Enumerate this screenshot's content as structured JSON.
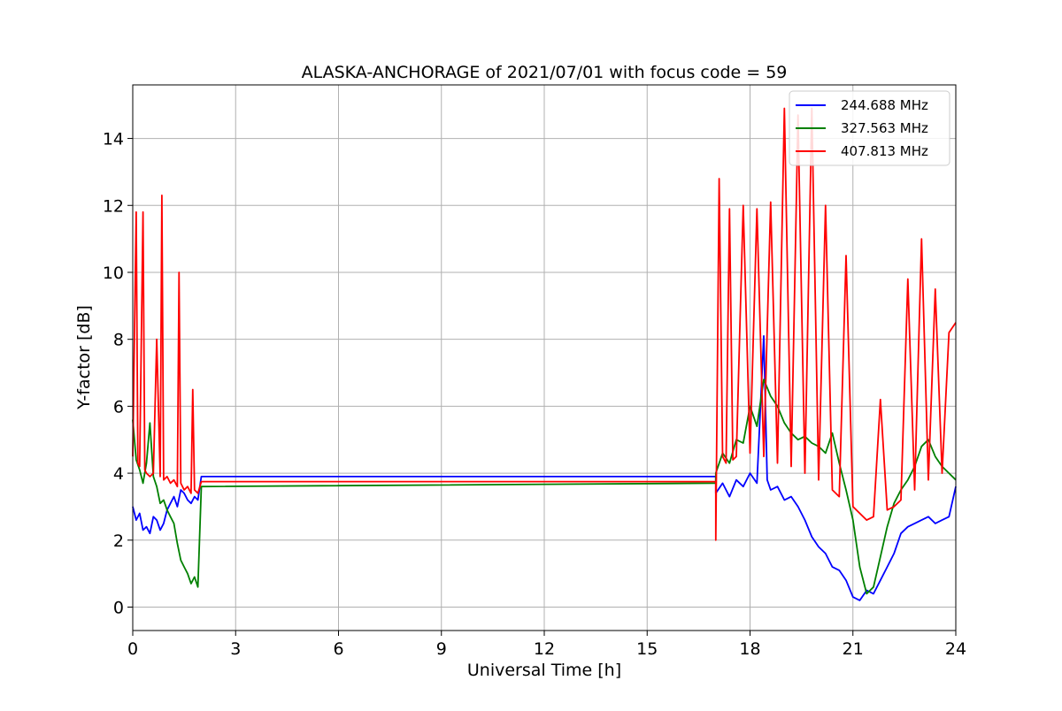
{
  "chart_data": {
    "type": "line",
    "title": "ALASKA-ANCHORAGE of 2021/07/01 with focus code = 59",
    "xlabel": "Universal Time [h]",
    "ylabel": "Y-factor [dB]",
    "xlim": [
      0,
      24
    ],
    "ylim": [
      -0.7,
      15.6
    ],
    "xticks": [
      0,
      3,
      6,
      9,
      12,
      15,
      18,
      21,
      24
    ],
    "yticks": [
      0,
      2,
      4,
      6,
      8,
      10,
      12,
      14
    ],
    "grid": true,
    "legend_position": "top-right",
    "series": [
      {
        "name": "244.688 MHz",
        "color": "#0000ff",
        "x": [
          0,
          0.1,
          0.2,
          0.3,
          0.4,
          0.5,
          0.6,
          0.7,
          0.8,
          0.9,
          1.0,
          1.1,
          1.2,
          1.3,
          1.4,
          1.5,
          1.6,
          1.7,
          1.8,
          1.9,
          2.0,
          17.0,
          17.0,
          17.2,
          17.4,
          17.6,
          17.8,
          18.0,
          18.2,
          18.4,
          18.5,
          18.6,
          18.8,
          19.0,
          19.2,
          19.4,
          19.6,
          19.8,
          20.0,
          20.2,
          20.4,
          20.6,
          20.8,
          21.0,
          21.2,
          21.4,
          21.6,
          21.8,
          22.0,
          22.2,
          22.4,
          22.6,
          22.8,
          23.0,
          23.2,
          23.4,
          23.6,
          23.8,
          24.0
        ],
        "values": [
          3.0,
          2.6,
          2.8,
          2.3,
          2.4,
          2.2,
          2.7,
          2.6,
          2.3,
          2.5,
          2.9,
          3.1,
          3.3,
          3.0,
          3.5,
          3.4,
          3.2,
          3.1,
          3.3,
          3.2,
          3.9,
          3.9,
          3.4,
          3.7,
          3.3,
          3.8,
          3.6,
          4.0,
          3.7,
          8.1,
          3.8,
          3.5,
          3.6,
          3.2,
          3.3,
          3.0,
          2.6,
          2.1,
          1.8,
          1.6,
          1.2,
          1.1,
          0.8,
          0.3,
          0.2,
          0.5,
          0.4,
          0.8,
          1.2,
          1.6,
          2.2,
          2.4,
          2.5,
          2.6,
          2.7,
          2.5,
          2.6,
          2.7,
          3.6
        ]
      },
      {
        "name": "327.563 MHz",
        "color": "#008000",
        "x": [
          0,
          0.1,
          0.2,
          0.3,
          0.4,
          0.5,
          0.6,
          0.7,
          0.8,
          0.9,
          1.0,
          1.1,
          1.2,
          1.3,
          1.4,
          1.5,
          1.6,
          1.7,
          1.8,
          1.9,
          2.0,
          17.0,
          17.0,
          17.2,
          17.4,
          17.6,
          17.8,
          18.0,
          18.2,
          18.4,
          18.6,
          18.8,
          19.0,
          19.2,
          19.4,
          19.6,
          19.8,
          20.0,
          20.2,
          20.4,
          20.6,
          20.8,
          21.0,
          21.2,
          21.4,
          21.6,
          21.8,
          22.0,
          22.2,
          22.4,
          22.6,
          22.8,
          23.0,
          23.2,
          23.4,
          23.6,
          23.8,
          24.0
        ],
        "values": [
          5.6,
          4.4,
          4.1,
          3.7,
          4.3,
          5.5,
          3.9,
          3.6,
          3.1,
          3.2,
          2.9,
          2.7,
          2.5,
          1.9,
          1.4,
          1.2,
          1.0,
          0.7,
          0.9,
          0.6,
          3.6,
          3.7,
          4.0,
          4.6,
          4.3,
          5.0,
          4.9,
          6.0,
          5.4,
          6.8,
          6.3,
          6.0,
          5.5,
          5.2,
          5.0,
          5.1,
          4.9,
          4.8,
          4.6,
          5.2,
          4.3,
          3.5,
          2.6,
          1.2,
          0.4,
          0.6,
          1.5,
          2.4,
          3.1,
          3.5,
          3.8,
          4.2,
          4.8,
          5.0,
          4.5,
          4.2,
          4.0,
          3.8
        ]
      },
      {
        "name": "407.813 MHz",
        "color": "#ff0000",
        "x": [
          0,
          0.1,
          0.15,
          0.2,
          0.3,
          0.35,
          0.4,
          0.5,
          0.6,
          0.7,
          0.8,
          0.85,
          0.9,
          1.0,
          1.1,
          1.2,
          1.3,
          1.35,
          1.4,
          1.5,
          1.6,
          1.7,
          1.75,
          1.8,
          1.9,
          2.0,
          17.0,
          17.0,
          17.1,
          17.2,
          17.3,
          17.4,
          17.5,
          17.6,
          17.8,
          18.0,
          18.2,
          18.4,
          18.6,
          18.8,
          19.0,
          19.2,
          19.4,
          19.6,
          19.8,
          20.0,
          20.2,
          20.4,
          20.6,
          20.8,
          21.0,
          21.2,
          21.4,
          21.6,
          21.8,
          22.0,
          22.2,
          22.4,
          22.6,
          22.8,
          23.0,
          23.2,
          23.4,
          23.6,
          23.8,
          24.0
        ],
        "values": [
          4.5,
          11.8,
          4.3,
          4.2,
          11.8,
          4.1,
          4.0,
          3.9,
          4.0,
          8.0,
          3.9,
          12.3,
          3.8,
          3.9,
          3.7,
          3.8,
          3.6,
          10.0,
          3.7,
          3.5,
          3.6,
          3.4,
          6.5,
          3.5,
          3.4,
          3.75,
          3.75,
          2.0,
          12.8,
          4.5,
          4.3,
          11.9,
          4.4,
          4.5,
          12.0,
          4.6,
          11.9,
          4.5,
          12.1,
          4.3,
          14.9,
          4.2,
          14.7,
          4.0,
          14.9,
          3.8,
          12.0,
          3.5,
          3.3,
          10.5,
          3.0,
          2.8,
          2.6,
          2.7,
          6.2,
          2.9,
          3.0,
          3.2,
          9.8,
          3.5,
          11.0,
          3.8,
          9.5,
          4.0,
          8.2,
          8.5
        ]
      }
    ]
  }
}
